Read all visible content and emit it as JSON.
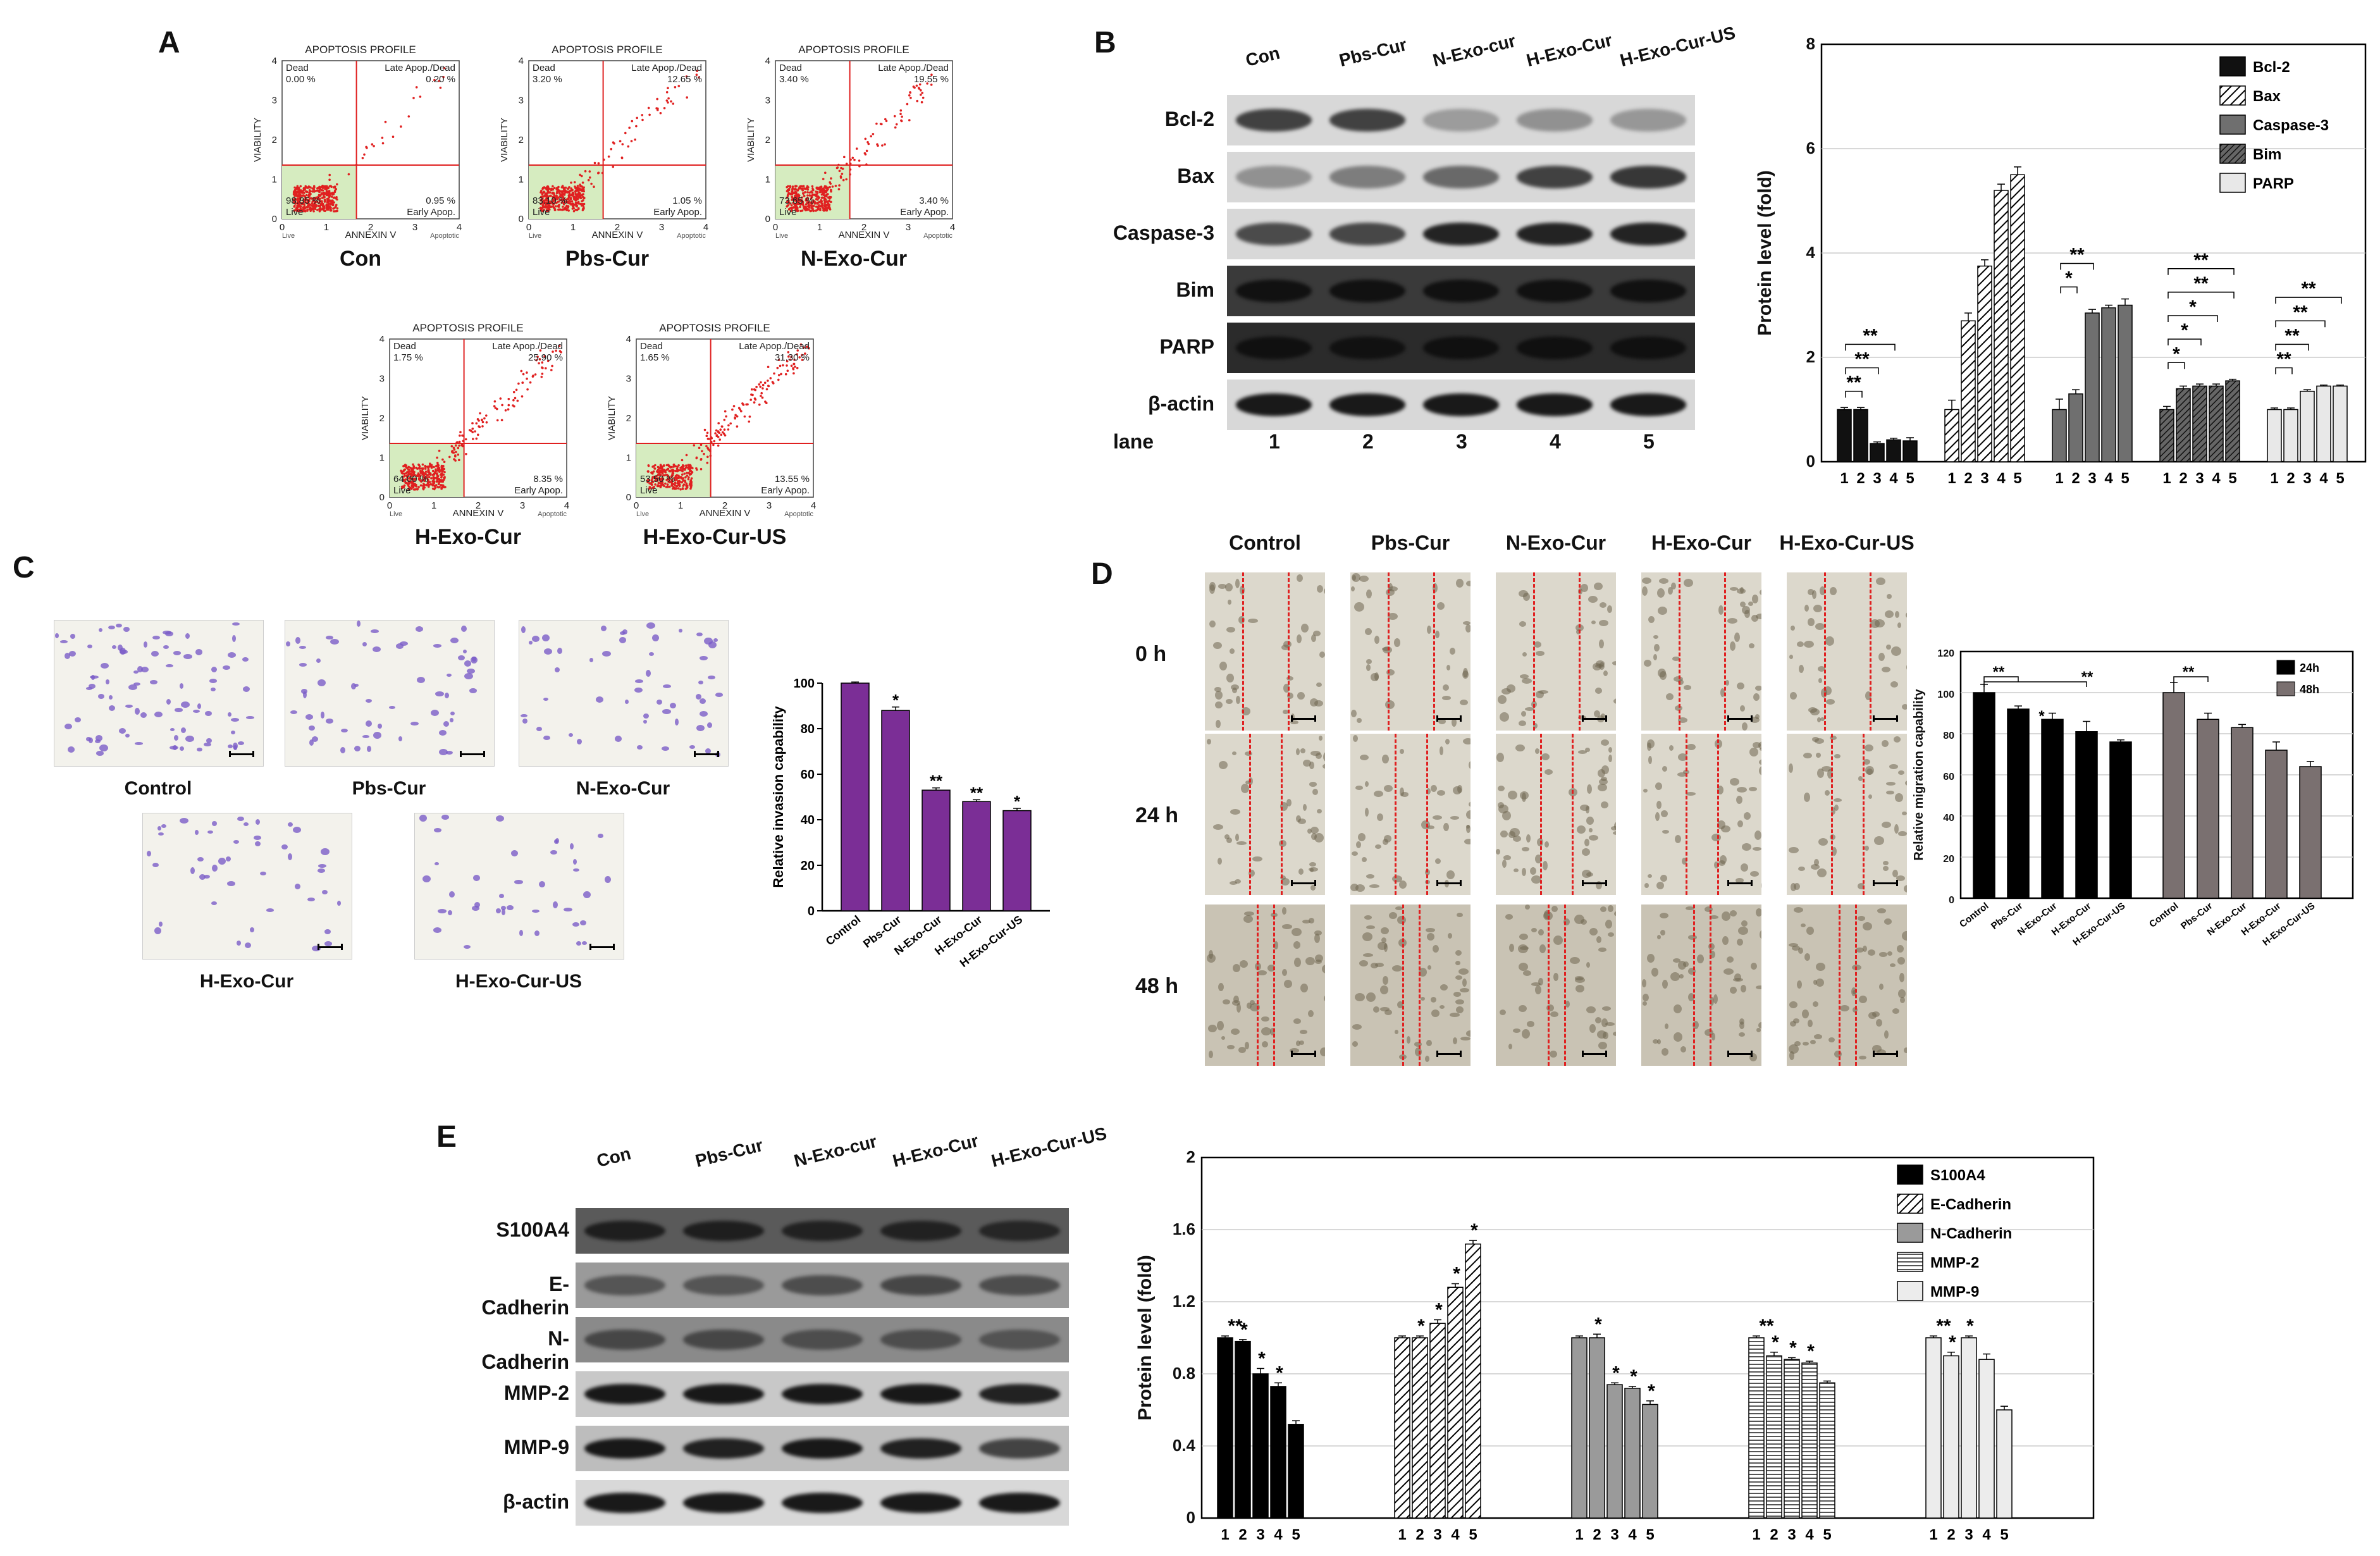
{
  "panels": {
    "A": "A",
    "B": "B",
    "C": "C",
    "D": "D",
    "E": "E"
  },
  "flow": {
    "profile_title": "APOPTOSIS PROFILE",
    "ylabel": "VIABILITY",
    "xlabel": "ANNEXIN V",
    "live": "Live",
    "apoptotic": "Apoptotic",
    "q_dead": "Dead",
    "q_late": "Late Apop./Dead",
    "q_early": "Early Apop.",
    "q_live": "Live",
    "plots": [
      {
        "name": "Con",
        "dead": "0.00 %",
        "late": "0.20 %",
        "live": "98.85 %",
        "early": "0.95 %"
      },
      {
        "name": "Pbs-Cur",
        "dead": "3.20 %",
        "late": "12.65 %",
        "live": "83.10 %",
        "early": "1.05 %"
      },
      {
        "name": "N-Exo-Cur",
        "dead": "3.40 %",
        "late": "19.55 %",
        "live": "73.65 %",
        "early": "3.40 %"
      },
      {
        "name": "H-Exo-Cur",
        "dead": "1.75 %",
        "late": "25.90 %",
        "live": "64.00 %",
        "early": "8.35 %"
      },
      {
        "name": "H-Exo-Cur-US",
        "dead": "1.65 %",
        "late": "31.30 %",
        "live": "53.50 %",
        "early": "13.55 %"
      }
    ],
    "ticks": [
      "0",
      "1",
      "2",
      "3",
      "4"
    ]
  },
  "blotB": {
    "lanes": [
      "Con",
      "Pbs-Cur",
      "N-Exo-cur",
      "H-Exo-Cur",
      "H-Exo-Cur-US"
    ],
    "rows": [
      "Bcl-2",
      "Bax",
      "Caspase-3",
      "Bim",
      "PARP",
      "β-actin"
    ],
    "lane_label": "lane",
    "lane_numbers": [
      "1",
      "2",
      "3",
      "4",
      "5"
    ]
  },
  "blotE": {
    "lanes": [
      "Con",
      "Pbs-Cur",
      "N-Exo-cur",
      "H-Exo-Cur",
      "H-Exo-Cur-US"
    ],
    "rows": [
      "S100A4",
      "E-Cadherin",
      "N-Cadherin",
      "MMP-2",
      "MMP-9",
      "β-actin"
    ]
  },
  "micrographs": {
    "invasion": [
      "Control",
      "Pbs-Cur",
      "N-Exo-Cur",
      "H-Exo-Cur",
      "H-Exo-Cur-US"
    ],
    "wound_cols": [
      "Control",
      "Pbs-Cur",
      "N-Exo-Cur",
      "H-Exo-Cur",
      "H-Exo-Cur-US"
    ],
    "wound_rows": [
      "0 h",
      "24 h",
      "48 h"
    ]
  },
  "colors": {
    "red": "#e02020",
    "purple": "#7b2e96",
    "gate": "#d6ecc0"
  },
  "chart_data": [
    {
      "id": "B",
      "type": "bar",
      "ylabel": "Protein level (fold)",
      "ylim": [
        0,
        8
      ],
      "yticks": [
        "0",
        "2",
        "4",
        "6",
        "8"
      ],
      "categories": [
        "1",
        "2",
        "3",
        "4",
        "5"
      ],
      "series": [
        {
          "name": "Bcl-2",
          "values": [
            1.0,
            1.0,
            0.35,
            0.42,
            0.4
          ],
          "errors": [
            0.04,
            0.04,
            0.03,
            0.03,
            0.06
          ]
        },
        {
          "name": "Bax",
          "values": [
            1.0,
            2.7,
            3.75,
            5.2,
            5.5
          ],
          "errors": [
            0.18,
            0.15,
            0.12,
            0.12,
            0.15
          ]
        },
        {
          "name": "Caspase-3",
          "values": [
            1.0,
            1.3,
            2.85,
            2.95,
            3.0
          ],
          "errors": [
            0.2,
            0.08,
            0.07,
            0.05,
            0.12
          ]
        },
        {
          "name": "Bim",
          "values": [
            1.0,
            1.4,
            1.45,
            1.45,
            1.55
          ],
          "errors": [
            0.06,
            0.05,
            0.04,
            0.04,
            0.03
          ]
        },
        {
          "name": "PARP",
          "values": [
            1.0,
            1.0,
            1.35,
            1.45,
            1.45
          ],
          "errors": [
            0.03,
            0.03,
            0.03,
            0.02,
            0.02
          ]
        }
      ],
      "annotations": [
        [
          "**",
          "**",
          "**"
        ],
        [],
        [
          "*",
          "**"
        ],
        [
          "*",
          "*",
          "*",
          "**",
          "**"
        ],
        [
          "**",
          "**",
          "**",
          "**"
        ]
      ]
    },
    {
      "id": "C",
      "type": "bar",
      "ylabel": "Relative invasion capability",
      "ylim": [
        0,
        100
      ],
      "yticks": [
        "0",
        "20",
        "40",
        "60",
        "80",
        "100"
      ],
      "categories": [
        "Control",
        "Pbs-Cur",
        "N-Exo-Cur",
        "H-Exo-Cur",
        "H-Exo-Cur-US"
      ],
      "values": [
        100,
        88,
        53,
        48,
        44
      ],
      "errors": [
        0.5,
        1.5,
        1.0,
        0.8,
        1.0
      ],
      "annotations": [
        "",
        "*",
        "**",
        "**",
        "*"
      ]
    },
    {
      "id": "D",
      "type": "bar",
      "ylabel": "Relative migration capability",
      "ylim": [
        0,
        120
      ],
      "yticks": [
        "0",
        "20",
        "40",
        "60",
        "80",
        "100",
        "120"
      ],
      "categories": [
        "Control",
        "Pbs-Cur",
        "N-Exo-Cur",
        "H-Exo-Cur",
        "H-Exo-Cur-US"
      ],
      "series": [
        {
          "name": "24h",
          "values": [
            100,
            92,
            87,
            81,
            76
          ],
          "errors": [
            4,
            1.5,
            3,
            5,
            1
          ]
        },
        {
          "name": "48h",
          "values": [
            100,
            87,
            83,
            72,
            64
          ],
          "errors": [
            5,
            3,
            1.5,
            4,
            2.5
          ]
        }
      ],
      "annotations": [
        "**",
        "*",
        "**",
        "**"
      ]
    },
    {
      "id": "E",
      "type": "bar",
      "ylabel": "Protein level (fold)",
      "ylim": [
        0,
        2
      ],
      "yticks": [
        "0",
        "0.4",
        "0.8",
        "1.2",
        "1.6",
        "2"
      ],
      "categories": [
        "1",
        "2",
        "3",
        "4",
        "5"
      ],
      "series": [
        {
          "name": "S100A4",
          "values": [
            1.0,
            0.98,
            0.8,
            0.73,
            0.52
          ],
          "errors": [
            0.01,
            0.01,
            0.03,
            0.02,
            0.02
          ]
        },
        {
          "name": "E-Cadherin",
          "values": [
            1.0,
            1.0,
            1.08,
            1.28,
            1.52
          ],
          "errors": [
            0.01,
            0.01,
            0.02,
            0.02,
            0.02
          ]
        },
        {
          "name": "N-Cadherin",
          "values": [
            1.0,
            1.0,
            0.74,
            0.72,
            0.63
          ],
          "errors": [
            0.01,
            0.02,
            0.01,
            0.01,
            0.02
          ]
        },
        {
          "name": "MMP-2",
          "values": [
            1.0,
            0.9,
            0.88,
            0.86,
            0.75
          ],
          "errors": [
            0.01,
            0.02,
            0.01,
            0.01,
            0.01
          ]
        },
        {
          "name": "MMP-9",
          "values": [
            1.0,
            0.9,
            1.0,
            0.88,
            0.6
          ],
          "errors": [
            0.01,
            0.02,
            0.01,
            0.03,
            0.02
          ]
        }
      ],
      "annotations": [
        [
          "**",
          "*",
          "*",
          "*"
        ],
        [
          "*",
          "*",
          "*",
          "*"
        ],
        [
          "*",
          "*",
          "*",
          "*"
        ],
        [
          "**",
          "*",
          "*",
          "*"
        ],
        [
          "**",
          "*",
          "*"
        ]
      ]
    }
  ]
}
